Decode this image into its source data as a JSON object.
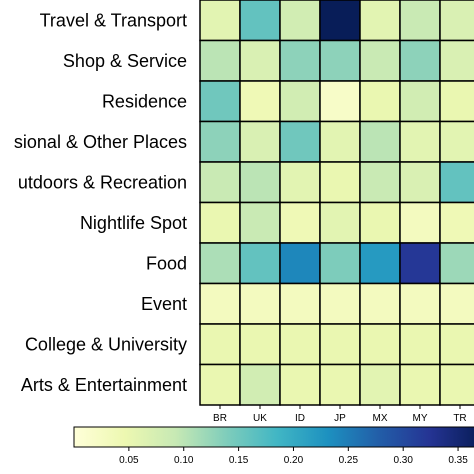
{
  "chart_data": {
    "type": "heatmap",
    "title": "",
    "xlabel": "",
    "ylabel": "",
    "rows": [
      "Travel & Transport",
      "Shop & Service",
      "Residence",
      "sional & Other Places",
      "utdoors & Recreation",
      "Nightlife Spot",
      "Food",
      "Event",
      "College & University",
      "Arts & Entertainment"
    ],
    "columns": [
      "BR",
      "UK",
      "ID",
      "JP",
      "MX",
      "MY",
      "TR"
    ],
    "values": [
      [
        0.06,
        0.16,
        0.08,
        0.38,
        0.06,
        0.09,
        0.07
      ],
      [
        0.1,
        0.07,
        0.13,
        0.13,
        0.09,
        0.13,
        0.07
      ],
      [
        0.15,
        0.04,
        0.08,
        0.02,
        0.05,
        0.08,
        0.05
      ],
      [
        0.13,
        0.07,
        0.15,
        0.06,
        0.1,
        0.06,
        0.06
      ],
      [
        0.09,
        0.1,
        0.06,
        0.05,
        0.09,
        0.07,
        0.16
      ],
      [
        0.05,
        0.09,
        0.04,
        0.06,
        0.05,
        0.03,
        0.04
      ],
      [
        0.11,
        0.16,
        0.24,
        0.14,
        0.22,
        0.32,
        0.12
      ],
      [
        0.03,
        0.03,
        0.03,
        0.03,
        0.03,
        0.03,
        0.03
      ],
      [
        0.05,
        0.05,
        0.05,
        0.05,
        0.05,
        0.05,
        0.05
      ],
      [
        0.05,
        0.08,
        0.05,
        0.05,
        0.06,
        0.05,
        0.05
      ]
    ],
    "colormap": "YlGnBu",
    "colorbar": {
      "range": [
        0.0,
        0.37
      ],
      "ticks": [
        "0.05",
        "0.10",
        "0.15",
        "0.20",
        "0.25",
        "0.30",
        "0.35"
      ]
    },
    "grid": true,
    "cell_border_color": "#000000"
  }
}
